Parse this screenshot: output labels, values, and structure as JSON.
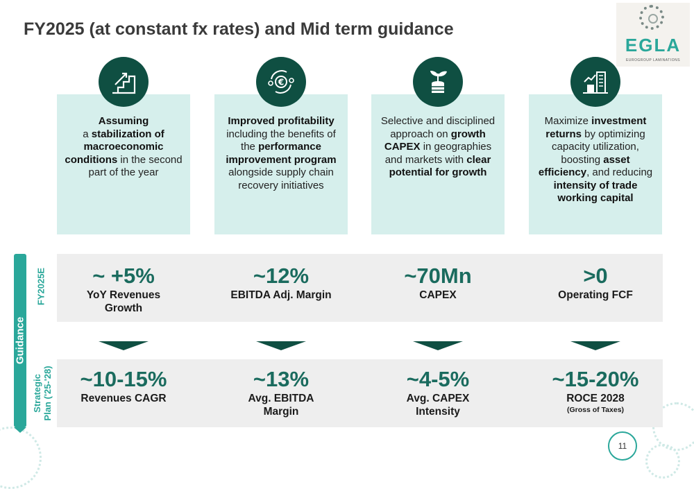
{
  "title": "FY2025 (at constant fx rates) and Mid term guidance",
  "logo": {
    "word": "EGLA",
    "subtitle": "EUROGROUP LAMINATIONS"
  },
  "icons": [
    "staircase-growth-icon",
    "euro-cycle-icon",
    "plant-coins-icon",
    "chart-building-icon"
  ],
  "cards": [
    {
      "parts": [
        {
          "t": "Assuming",
          "b": true,
          "br": true
        },
        {
          "t": "a ",
          "b": false
        },
        {
          "t": "stabilization of macroeconomic conditions",
          "b": true
        },
        {
          "t": " in the second part of the year",
          "b": false
        }
      ]
    },
    {
      "parts": [
        {
          "t": "Improved profitability",
          "b": true
        },
        {
          "t": " including the benefits of the ",
          "b": false
        },
        {
          "t": "performance improvement program",
          "b": true
        },
        {
          "t": " alongside supply chain recovery initiatives",
          "b": false
        }
      ]
    },
    {
      "parts": [
        {
          "t": "Selective and disciplined approach on ",
          "b": false
        },
        {
          "t": "growth CAPEX",
          "b": true
        },
        {
          "t": " in geographies and markets with ",
          "b": false
        },
        {
          "t": "clear potential for growth",
          "b": true
        }
      ]
    },
    {
      "parts": [
        {
          "t": "Maximize ",
          "b": false
        },
        {
          "t": "investment returns",
          "b": true
        },
        {
          "t": " by optimizing capacity utilization, boosting ",
          "b": false
        },
        {
          "t": "asset efficiency",
          "b": true
        },
        {
          "t": ", and reducing ",
          "b": false
        },
        {
          "t": "intensity of trade working capital",
          "b": true
        }
      ]
    }
  ],
  "guidance": {
    "label": "Guidance",
    "row1_label": "FY2025E",
    "row2_label_line1": "Strategic",
    "row2_label_line2": "Plan ('25-'28)",
    "fy2025": [
      {
        "value": "~ +5%",
        "label": "YoY Revenues Growth"
      },
      {
        "value": "~12%",
        "label": "EBITDA Adj. Margin"
      },
      {
        "value": "~70Mn",
        "label": "CAPEX"
      },
      {
        "value": ">0",
        "label": "Operating FCF"
      }
    ],
    "plan": [
      {
        "value": "~10-15%",
        "label": "Revenues CAGR",
        "sub": ""
      },
      {
        "value": "~13%",
        "label": "Avg. EBITDA Margin",
        "sub": ""
      },
      {
        "value": "~4-5%",
        "label": "Avg. CAPEX Intensity",
        "sub": ""
      },
      {
        "value": "~15-20%",
        "label": "ROCE 2028",
        "sub": "(Gross of Taxes)"
      }
    ]
  },
  "page_number": "11",
  "colors": {
    "dark_green": "#0f4f42",
    "teal": "#2aa79a",
    "card_bg": "#d6efec",
    "value_green": "#1a6b5e"
  }
}
